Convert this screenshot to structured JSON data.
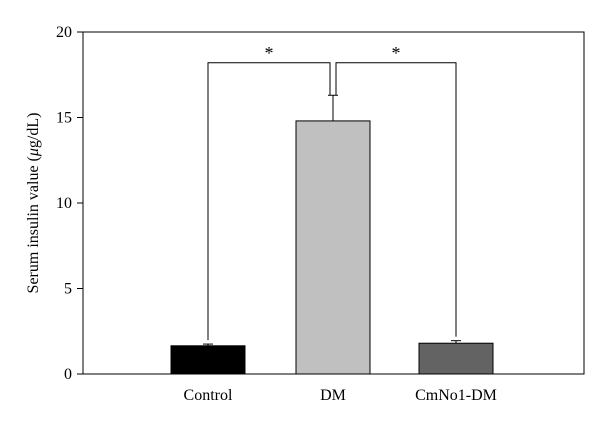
{
  "chart_data": {
    "type": "bar",
    "title": "",
    "xlabel": "",
    "ylabel": {
      "prefix": "Serum insulin value (",
      "mu": "μ",
      "suffix": "g/dL)"
    },
    "ylim": [
      0,
      20
    ],
    "yticks": [
      0,
      5,
      10,
      15,
      20
    ],
    "grid": false,
    "categories": [
      "Control",
      "DM",
      "CmNo1-DM"
    ],
    "values": [
      1.65,
      14.8,
      1.8
    ],
    "errors": [
      0.1,
      1.5,
      0.15
    ],
    "colors": [
      "#000000",
      "#c0c0c0",
      "#636363"
    ],
    "significance": [
      {
        "from": 0,
        "to": 1,
        "label": "*",
        "level": 18.2
      },
      {
        "from": 1,
        "to": 2,
        "label": "*",
        "level": 18.2
      }
    ]
  }
}
